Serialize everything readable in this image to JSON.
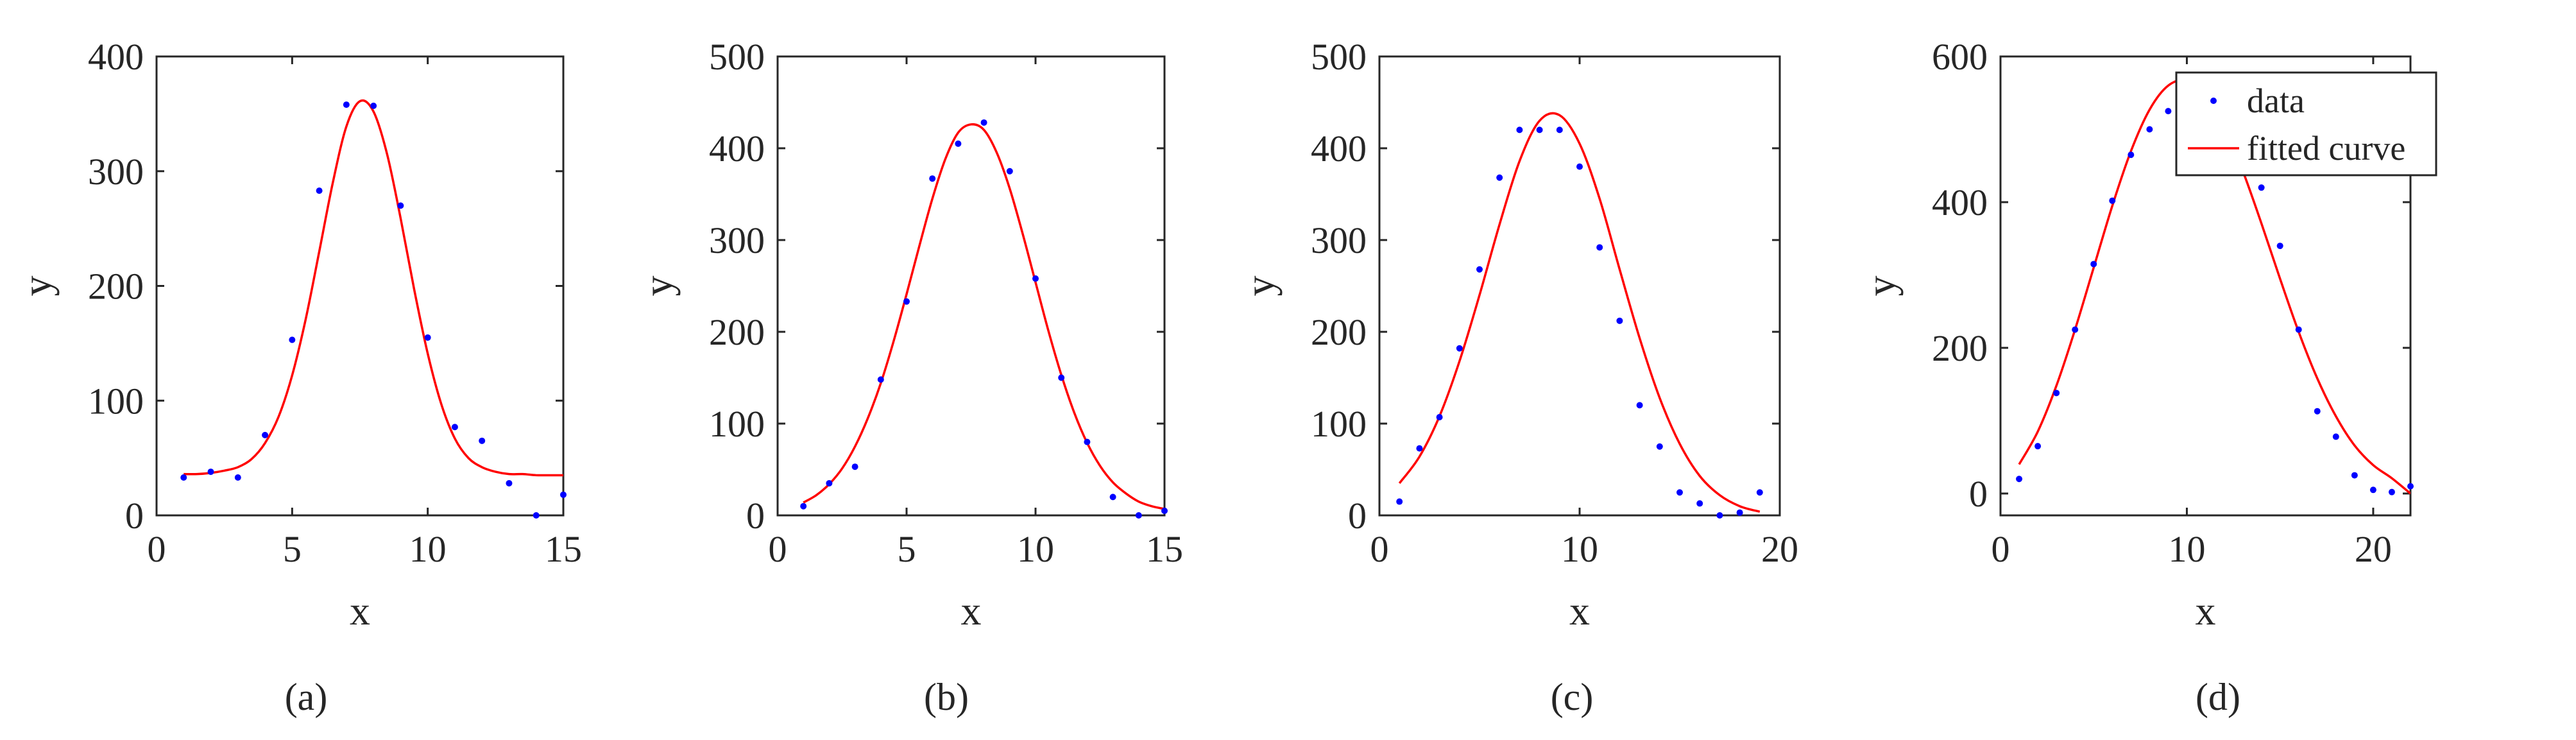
{
  "chart_data": [
    {
      "type": "scatter",
      "panel_label": "a",
      "xlabel": "x",
      "ylabel": "y",
      "xlim": [
        0,
        15
      ],
      "ylim": [
        0,
        400
      ],
      "xticks": [
        0,
        5,
        10,
        15
      ],
      "yticks": [
        0,
        100,
        200,
        300,
        400
      ],
      "legend": null,
      "series": [
        {
          "kind": "points",
          "x": [
            1,
            2,
            3,
            4,
            5,
            6,
            7,
            8,
            9,
            10,
            11,
            12,
            13,
            14,
            15
          ],
          "y": [
            33,
            38,
            33,
            70,
            153,
            283,
            358,
            357,
            270,
            155,
            77,
            65,
            28,
            0,
            18
          ]
        },
        {
          "kind": "curve",
          "x": [
            1,
            1.5,
            2,
            2.5,
            3,
            3.5,
            4,
            4.5,
            5,
            5.5,
            6,
            6.5,
            7,
            7.5,
            8,
            8.5,
            9,
            9.5,
            10,
            10.5,
            11,
            11.5,
            12,
            12.5,
            13,
            13.5,
            14,
            14.5,
            15
          ],
          "y": [
            36,
            36,
            37,
            39,
            42,
            49,
            63,
            86,
            122,
            171,
            230,
            290,
            339,
            361,
            352,
            315,
            259,
            197,
            141,
            97,
            67,
            50,
            42,
            38,
            36,
            36,
            35,
            35,
            35
          ]
        }
      ]
    },
    {
      "type": "scatter",
      "panel_label": "b",
      "xlabel": "x",
      "ylabel": "y",
      "xlim": [
        0,
        15
      ],
      "ylim": [
        0,
        500
      ],
      "xticks": [
        0,
        5,
        10,
        15
      ],
      "yticks": [
        0,
        100,
        200,
        300,
        400,
        500
      ],
      "legend": null,
      "series": [
        {
          "kind": "points",
          "x": [
            1,
            2,
            3,
            4,
            5,
            6,
            7,
            8,
            9,
            10,
            11,
            12,
            13,
            14,
            15
          ],
          "y": [
            10,
            35,
            53,
            148,
            233,
            367,
            405,
            428,
            375,
            258,
            150,
            80,
            20,
            0,
            5
          ]
        },
        {
          "kind": "curve",
          "x": [
            1,
            1.5,
            2,
            2.5,
            3,
            3.5,
            4,
            4.5,
            5,
            5.5,
            6,
            6.5,
            7,
            7.5,
            8,
            8.5,
            9,
            9.5,
            10,
            10.5,
            11,
            11.5,
            12,
            12.5,
            13,
            13.5,
            14,
            14.5,
            15
          ],
          "y": [
            14,
            22,
            34,
            51,
            75,
            106,
            144,
            190,
            241,
            294,
            345,
            388,
            417,
            426,
            420,
            395,
            356,
            307,
            254,
            201,
            153,
            112,
            79,
            54,
            36,
            24,
            15,
            10,
            7
          ]
        }
      ]
    },
    {
      "type": "scatter",
      "panel_label": "c",
      "xlabel": "x",
      "ylabel": "y",
      "xlim": [
        0,
        20
      ],
      "ylim": [
        0,
        500
      ],
      "xticks": [
        0,
        10,
        20
      ],
      "yticks": [
        0,
        100,
        200,
        300,
        400,
        500
      ],
      "legend": null,
      "series": [
        {
          "kind": "points",
          "x": [
            1,
            2,
            3,
            4,
            5,
            6,
            7,
            8,
            9,
            10,
            11,
            12,
            13,
            14,
            15,
            16,
            17,
            18,
            19
          ],
          "y": [
            15,
            73,
            107,
            182,
            268,
            368,
            420,
            420,
            420,
            380,
            292,
            212,
            120,
            75,
            25,
            13,
            0,
            3,
            25
          ]
        },
        {
          "kind": "curve",
          "x": [
            1,
            2,
            3,
            4,
            5,
            6,
            7,
            8,
            9,
            10,
            11,
            12,
            13,
            14,
            15,
            16,
            17,
            18,
            19
          ],
          "y": [
            35,
            64,
            108,
            168,
            240,
            317,
            386,
            430,
            436,
            405,
            345,
            268,
            193,
            128,
            78,
            43,
            22,
            10,
            4
          ]
        }
      ]
    },
    {
      "type": "scatter",
      "panel_label": "d",
      "xlabel": "x",
      "ylabel": "y",
      "xlim": [
        0,
        22
      ],
      "ylim": [
        -30,
        600
      ],
      "xticks": [
        0,
        10,
        20
      ],
      "yticks": [
        0,
        200,
        400,
        600
      ],
      "legend": {
        "position": "top-right",
        "entries": [
          "data",
          "fitted curve"
        ]
      },
      "series": [
        {
          "kind": "points",
          "name": "data",
          "color": "#0000ff",
          "x": [
            1,
            2,
            3,
            4,
            5,
            6,
            7,
            8,
            9,
            10,
            11,
            12,
            13,
            14,
            15,
            16,
            17,
            18,
            19,
            20,
            21,
            22
          ],
          "y": [
            20,
            65,
            138,
            225,
            315,
            402,
            465,
            500,
            525,
            548,
            545,
            525,
            478,
            420,
            340,
            225,
            113,
            78,
            25,
            5,
            2,
            10
          ]
        },
        {
          "kind": "curve",
          "name": "fitted curve",
          "color": "#ff0000",
          "x": [
            1,
            2,
            3,
            4,
            5,
            6,
            7,
            8,
            9,
            10,
            11,
            12,
            13,
            14,
            15,
            16,
            17,
            18,
            19,
            20,
            21,
            22
          ],
          "y": [
            40,
            85,
            148,
            225,
            310,
            395,
            470,
            527,
            560,
            567,
            548,
            505,
            443,
            371,
            295,
            222,
            158,
            106,
            66,
            39,
            21,
            0
          ]
        }
      ]
    }
  ],
  "panel_captions": [
    "(a)",
    "(b)",
    "(c)",
    "(d)"
  ],
  "colors": {
    "points": "#0000ff",
    "curve": "#ff0000",
    "axes": "#262626"
  }
}
